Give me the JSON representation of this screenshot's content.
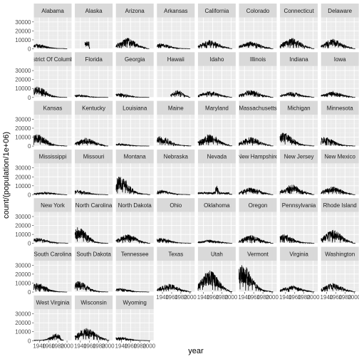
{
  "chart_data": {
    "type": "line",
    "xlabel": "year",
    "ylabel": "count/(population/1e+06)",
    "ylim": [
      0,
      35000
    ],
    "xlim": [
      1928,
      2010
    ],
    "y_ticks": [
      0,
      10000,
      20000,
      30000
    ],
    "y_tick_labels": [
      "0",
      "10000",
      "20000",
      "30000"
    ],
    "x_ticks": [
      1940,
      1960,
      1980,
      2000
    ],
    "x_tick_labels": [
      "1940",
      "1960",
      "1980",
      "2000"
    ],
    "grid": true,
    "panels": [
      {
        "label": "Alabama",
        "start": 1928,
        "end": 2000,
        "peak": 5000,
        "base": 600,
        "profile": "early"
      },
      {
        "label": "Alaska",
        "start": 1950,
        "end": 1960,
        "peak": 8000,
        "base": 1500,
        "profile": "short"
      },
      {
        "label": "Arizona",
        "start": 1928,
        "end": 2000,
        "peak": 12000,
        "base": 800,
        "profile": "mid"
      },
      {
        "label": "Arkansas",
        "start": 1928,
        "end": 2000,
        "peak": 6000,
        "base": 500,
        "profile": "early"
      },
      {
        "label": "California",
        "start": 1928,
        "end": 2002,
        "peak": 9500,
        "base": 1500,
        "profile": "mid"
      },
      {
        "label": "Colorado",
        "start": 1928,
        "end": 2002,
        "peak": 8000,
        "base": 1000,
        "profile": "mid"
      },
      {
        "label": "Connecticut",
        "start": 1928,
        "end": 2002,
        "peak": 12000,
        "base": 1200,
        "profile": "mid"
      },
      {
        "label": "Delaware",
        "start": 1928,
        "end": 2002,
        "peak": 11000,
        "base": 1000,
        "profile": "mid"
      },
      {
        "label": "District Of Columbia",
        "start": 1928,
        "end": 2000,
        "peak": 12000,
        "base": 500,
        "profile": "early"
      },
      {
        "label": "Florida",
        "start": 1928,
        "end": 2000,
        "peak": 3000,
        "base": 300,
        "profile": "early"
      },
      {
        "label": "Georgia",
        "start": 1928,
        "end": 2000,
        "peak": 4500,
        "base": 400,
        "profile": "early"
      },
      {
        "label": "Hawaii",
        "start": 1958,
        "end": 2000,
        "peak": 8000,
        "base": 2000,
        "profile": "mid"
      },
      {
        "label": "Idaho",
        "start": 1928,
        "end": 2002,
        "peak": 7000,
        "base": 1000,
        "profile": "mid"
      },
      {
        "label": "Illinois",
        "start": 1928,
        "end": 2002,
        "peak": 8000,
        "base": 1200,
        "profile": "mid"
      },
      {
        "label": "Indiana",
        "start": 1928,
        "end": 2002,
        "peak": 6000,
        "base": 900,
        "profile": "mid"
      },
      {
        "label": "Iowa",
        "start": 1928,
        "end": 2002,
        "peak": 6500,
        "base": 900,
        "profile": "mid"
      },
      {
        "label": "Kansas",
        "start": 1928,
        "end": 2000,
        "peak": 13000,
        "base": 800,
        "profile": "early"
      },
      {
        "label": "Kentucky",
        "start": 1928,
        "end": 2000,
        "peak": 9000,
        "base": 700,
        "profile": "mid"
      },
      {
        "label": "Louisiana",
        "start": 1928,
        "end": 2000,
        "peak": 3000,
        "base": 300,
        "profile": "early"
      },
      {
        "label": "Maine",
        "start": 1928,
        "end": 2002,
        "peak": 11000,
        "base": 1200,
        "profile": "early"
      },
      {
        "label": "Maryland",
        "start": 1928,
        "end": 2002,
        "peak": 13000,
        "base": 1500,
        "profile": "mid"
      },
      {
        "label": "Massachusetts",
        "start": 1928,
        "end": 2002,
        "peak": 10000,
        "base": 1200,
        "profile": "mid"
      },
      {
        "label": "Michigan",
        "start": 1928,
        "end": 2002,
        "peak": 15000,
        "base": 1500,
        "profile": "early"
      },
      {
        "label": "Minnesota",
        "start": 1928,
        "end": 2002,
        "peak": 10000,
        "base": 1000,
        "profile": "early"
      },
      {
        "label": "Mississippi",
        "start": 1928,
        "end": 2000,
        "peak": 3000,
        "base": 300,
        "profile": "mid"
      },
      {
        "label": "Missouri",
        "start": 1928,
        "end": 2000,
        "peak": 5000,
        "base": 500,
        "profile": "early"
      },
      {
        "label": "Montana",
        "start": 1928,
        "end": 2002,
        "peak": 20000,
        "base": 1500,
        "profile": "early"
      },
      {
        "label": "Nebraska",
        "start": 1928,
        "end": 2000,
        "peak": 5000,
        "base": 600,
        "profile": "early"
      },
      {
        "label": "Nevada",
        "start": 1928,
        "end": 2002,
        "peak": 10000,
        "base": 800,
        "profile": "spike"
      },
      {
        "label": "New Hampshire",
        "start": 1928,
        "end": 2002,
        "peak": 8000,
        "base": 1000,
        "profile": "mid"
      },
      {
        "label": "New Jersey",
        "start": 1928,
        "end": 2002,
        "peak": 11000,
        "base": 1500,
        "profile": "mid"
      },
      {
        "label": "New Mexico",
        "start": 1928,
        "end": 2002,
        "peak": 9000,
        "base": 800,
        "profile": "mid"
      },
      {
        "label": "New York",
        "start": 1928,
        "end": 2002,
        "peak": 6000,
        "base": 1000,
        "profile": "early"
      },
      {
        "label": "North Carolina",
        "start": 1928,
        "end": 2000,
        "peak": 18000,
        "base": 600,
        "profile": "early"
      },
      {
        "label": "North Dakota",
        "start": 1928,
        "end": 2002,
        "peak": 10000,
        "base": 800,
        "profile": "mid"
      },
      {
        "label": "Ohio",
        "start": 1928,
        "end": 2002,
        "peak": 6000,
        "base": 800,
        "profile": "early"
      },
      {
        "label": "Oklahoma",
        "start": 1928,
        "end": 2002,
        "peak": 4000,
        "base": 500,
        "profile": "mid"
      },
      {
        "label": "Oregon",
        "start": 1928,
        "end": 2002,
        "peak": 9000,
        "base": 1200,
        "profile": "mid"
      },
      {
        "label": "Pennsylvania",
        "start": 1928,
        "end": 2002,
        "peak": 10000,
        "base": 1200,
        "profile": "early"
      },
      {
        "label": "Rhode Island",
        "start": 1928,
        "end": 2002,
        "peak": 15000,
        "base": 1500,
        "profile": "mid"
      },
      {
        "label": "South Carolina",
        "start": 1928,
        "end": 2000,
        "peak": 10000,
        "base": 300,
        "profile": "early"
      },
      {
        "label": "South Dakota",
        "start": 1928,
        "end": 2000,
        "peak": 12000,
        "base": 500,
        "profile": "early"
      },
      {
        "label": "Tennessee",
        "start": 1928,
        "end": 2000,
        "peak": 4000,
        "base": 400,
        "profile": "early"
      },
      {
        "label": "Texas",
        "start": 1928,
        "end": 2002,
        "peak": 9000,
        "base": 1000,
        "profile": "mid"
      },
      {
        "label": "Utah",
        "start": 1928,
        "end": 2002,
        "peak": 24000,
        "base": 2000,
        "profile": "mid"
      },
      {
        "label": "Vermont",
        "start": 1928,
        "end": 2002,
        "peak": 30000,
        "base": 2000,
        "profile": "early"
      },
      {
        "label": "Virginia",
        "start": 1928,
        "end": 2002,
        "peak": 7000,
        "base": 1000,
        "profile": "mid"
      },
      {
        "label": "Washington",
        "start": 1928,
        "end": 2002,
        "peak": 10000,
        "base": 1200,
        "profile": "mid"
      },
      {
        "label": "West Virginia",
        "start": 1928,
        "end": 1992,
        "peak": 8000,
        "base": 1000,
        "profile": "late"
      },
      {
        "label": "Wisconsin",
        "start": 1928,
        "end": 2002,
        "peak": 14000,
        "base": 3000,
        "profile": "mid"
      },
      {
        "label": "Wyoming",
        "start": 1928,
        "end": 2002,
        "peak": 4000,
        "base": 400,
        "profile": "early"
      }
    ],
    "colors": {
      "panel_bg": "#EBEBEB",
      "strip_bg": "#D9D9D9",
      "grid_major": "#FFFFFF",
      "grid_minor": "#F2F2F2",
      "line": "#000000"
    }
  }
}
